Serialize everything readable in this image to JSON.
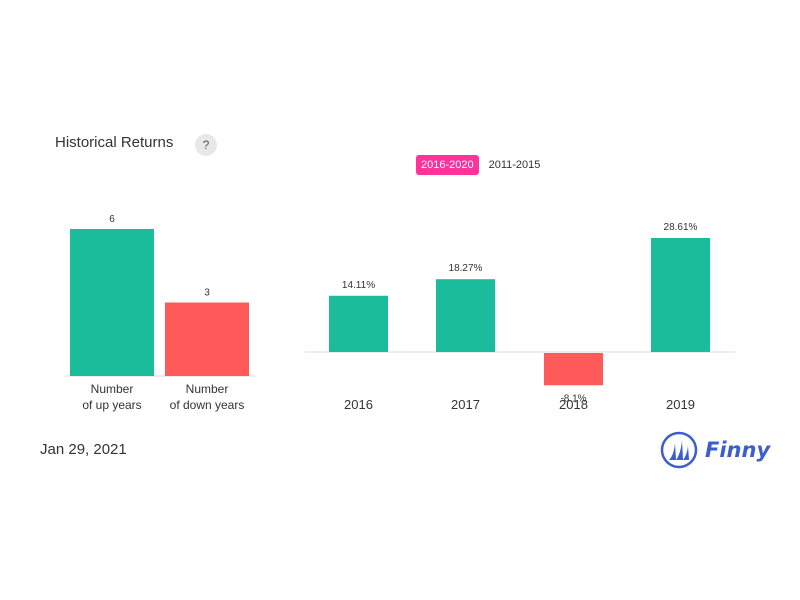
{
  "header": {
    "title": "Historical Returns",
    "help_label": "?"
  },
  "range_tabs": [
    {
      "label": "2016-2020",
      "active": true
    },
    {
      "label": "2011-2015",
      "active": false
    }
  ],
  "footer": {
    "date": "Jan 29, 2021",
    "logo_text": "Finny"
  },
  "colors": {
    "up": "#1abc9c",
    "down": "#ff5a5a",
    "accent": "#ff3399",
    "brand": "#3a5fcd"
  },
  "chart_data": [
    {
      "type": "bar",
      "categories": [
        [
          "Number",
          "of up years"
        ],
        [
          "Number",
          "of down years"
        ]
      ],
      "values": [
        6,
        3
      ],
      "value_labels": [
        "6",
        "3"
      ],
      "ylim": [
        0,
        6
      ]
    },
    {
      "type": "bar",
      "categories": [
        "2016",
        "2017",
        "2018",
        "2019"
      ],
      "values": [
        14.11,
        18.27,
        -8.1,
        28.61
      ],
      "value_labels": [
        "14.11%",
        "18.27%",
        "-8.1%",
        "28.61%"
      ],
      "ylim": [
        -8.1,
        28.61
      ]
    }
  ]
}
